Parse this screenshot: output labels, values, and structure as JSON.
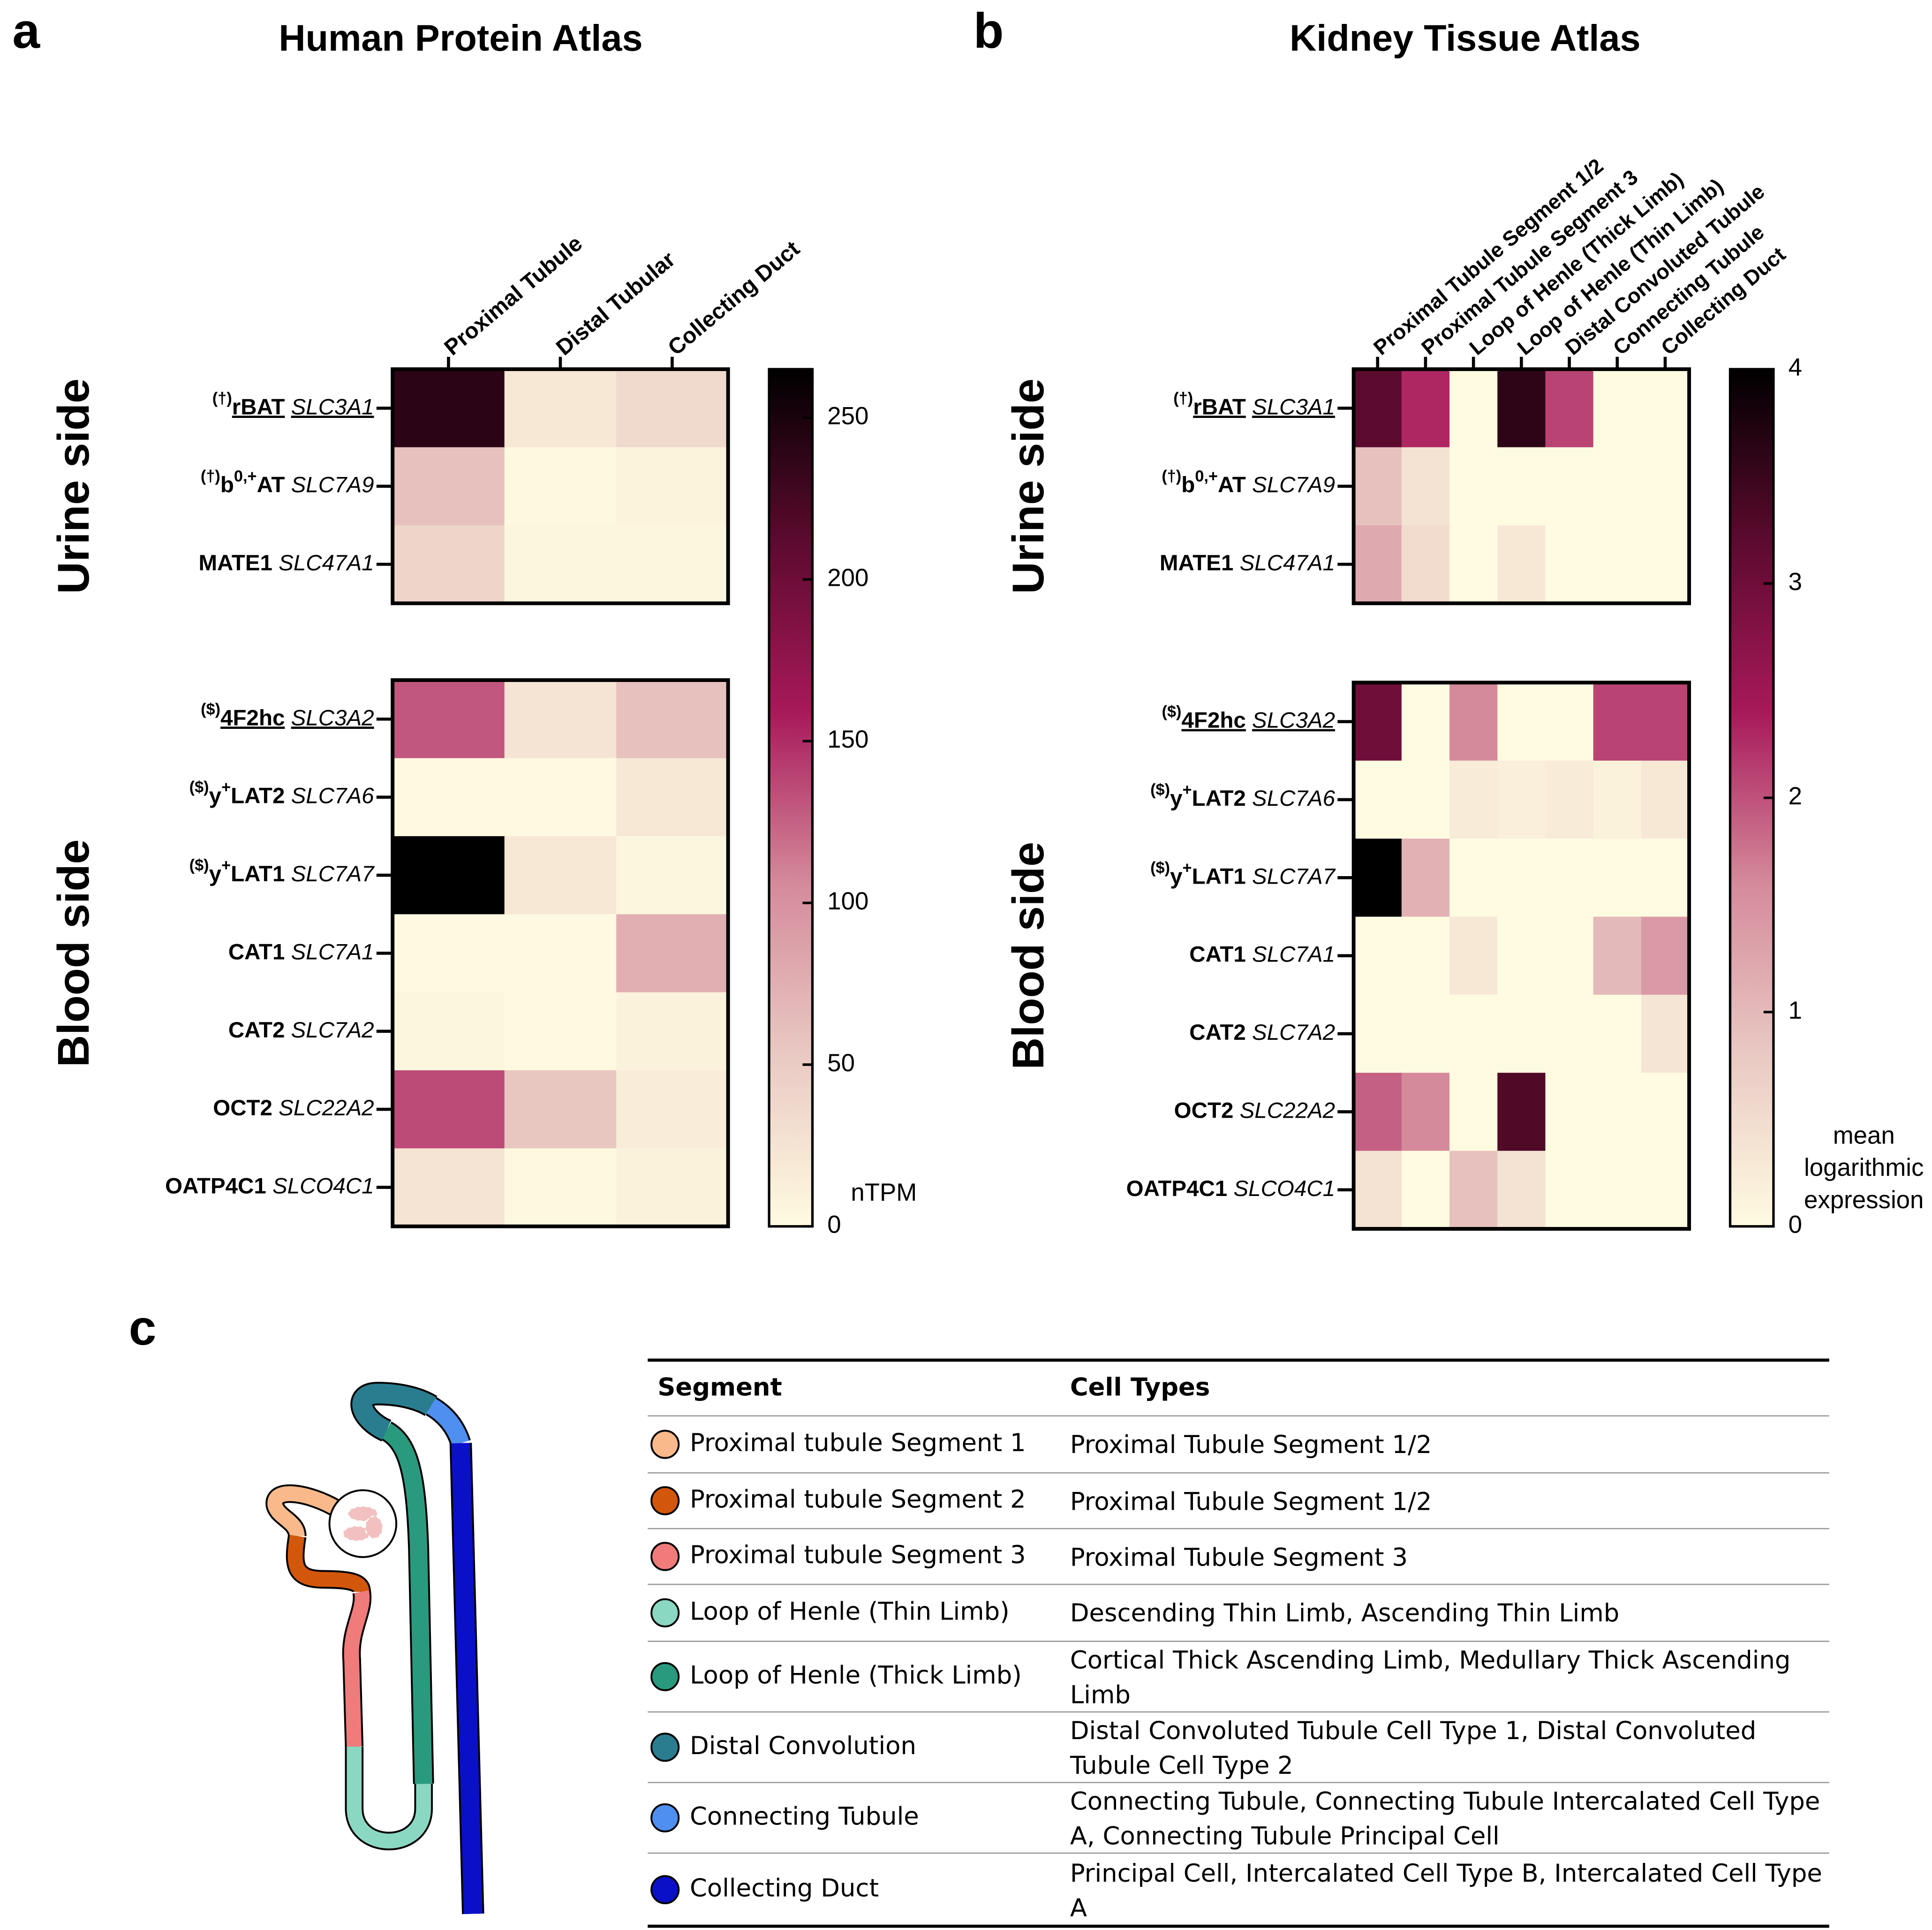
{
  "panels": [
    "a",
    "b",
    "c"
  ],
  "chart_data": [
    {
      "type": "heatmap",
      "title": "Human Protein Atlas",
      "categories": [
        "Proximal Tubule",
        "Distal Tubular",
        "Collecting Duct"
      ],
      "groups": [
        {
          "label": "Urine side",
          "rows": [
            {
              "note": "(†)",
              "protein": [
                "rBAT"
              ],
              "gene": "SLC3A1",
              "underline": true
            },
            {
              "note": "(†)",
              "protein": [
                "b",
                "0,+",
                "AT"
              ],
              "gene": "SLC7A9"
            },
            {
              "protein": [
                "MATE1"
              ],
              "gene": "SLC47A1"
            }
          ],
          "values": [
            [
              240,
              20,
              35
            ],
            [
              60,
              3,
              8
            ],
            [
              40,
              5,
              5
            ]
          ]
        },
        {
          "label": "Blood side",
          "rows": [
            {
              "note": "($)",
              "protein": [
                "4F2hc"
              ],
              "gene": "SLC3A2",
              "underline": true
            },
            {
              "note": "($)",
              "protein": [
                "y",
                "+",
                "LAT2"
              ],
              "gene": "SLC7A6"
            },
            {
              "note": "($)",
              "protein": [
                "y",
                "+",
                "LAT1"
              ],
              "gene": "SLC7A7"
            },
            {
              "protein": [
                "CAT1"
              ],
              "gene": "SLC7A1"
            },
            {
              "protein": [
                "CAT2"
              ],
              "gene": "SLC7A2"
            },
            {
              "protein": [
                "OCT2"
              ],
              "gene": "SLC22A2"
            },
            {
              "protein": [
                "OATP4C1"
              ],
              "gene": "SLCO4C1"
            }
          ],
          "values": [
            [
              130,
              25,
              60
            ],
            [
              2,
              2,
              20
            ],
            [
              265,
              20,
              5
            ],
            [
              2,
              2,
              75
            ],
            [
              5,
              2,
              10
            ],
            [
              135,
              55,
              15
            ],
            [
              25,
              3,
              10
            ]
          ]
        }
      ],
      "zlim": [
        0,
        265
      ],
      "zticks": [
        0,
        50,
        100,
        150,
        200,
        250
      ],
      "colorbar_label": [
        "nTPM"
      ],
      "colors": [
        "#fffbe1",
        "#e9c9c3",
        "#d58a9b",
        "#a8195a",
        "#5c0a2e",
        "#000000"
      ]
    },
    {
      "type": "heatmap",
      "title": "Kidney Tissue Atlas",
      "categories": [
        "Proximal Tubule Segment 1/2",
        "Proximal Tubule Segment 3",
        "Loop of Henle (Thick Limb)",
        "Loop of Henle (Thin Limb)",
        "Distal Convoluted Tubule",
        "Connecting Tubule",
        "Collecting Duct"
      ],
      "groups": [
        {
          "label": "Urine side",
          "rows": [
            {
              "note": "(†)",
              "protein": [
                "rBAT"
              ],
              "gene": "SLC3A1",
              "underline": true
            },
            {
              "note": "(†)",
              "protein": [
                "b",
                "0,+",
                "AT"
              ],
              "gene": "SLC7A9"
            },
            {
              "protein": [
                "MATE1"
              ],
              "gene": "SLC47A1"
            }
          ],
          "values": [
            [
              3.2,
              2.3,
              0,
              3.6,
              2.1,
              0,
              0
            ],
            [
              0.9,
              0.4,
              0,
              0,
              0,
              0,
              0
            ],
            [
              1.2,
              0.5,
              0,
              0.3,
              0,
              0,
              0
            ]
          ]
        },
        {
          "label": "Blood side",
          "rows": [
            {
              "note": "($)",
              "protein": [
                "4F2hc"
              ],
              "gene": "SLC3A2",
              "underline": true
            },
            {
              "note": "($)",
              "protein": [
                "y",
                "+",
                "LAT2"
              ],
              "gene": "SLC7A6"
            },
            {
              "note": "($)",
              "protein": [
                "y",
                "+",
                "LAT1"
              ],
              "gene": "SLC7A7"
            },
            {
              "protein": [
                "CAT1"
              ],
              "gene": "SLC7A1"
            },
            {
              "protein": [
                "CAT2"
              ],
              "gene": "SLC7A2"
            },
            {
              "protein": [
                "OCT2"
              ],
              "gene": "SLC22A2"
            },
            {
              "protein": [
                "OATP4C1"
              ],
              "gene": "SLCO4C1"
            }
          ],
          "values": [
            [
              3.0,
              0,
              1.6,
              0,
              0,
              2.1,
              2.1
            ],
            [
              0,
              0,
              0.25,
              0.2,
              0.25,
              0.15,
              0.3
            ],
            [
              4.0,
              1.1,
              0,
              0,
              0,
              0,
              0
            ],
            [
              0,
              0,
              0.3,
              0,
              0,
              1.0,
              1.4
            ],
            [
              0,
              0,
              0,
              0,
              0,
              0,
              0.35
            ],
            [
              1.9,
              1.6,
              0,
              3.3,
              0,
              0,
              0
            ],
            [
              0.4,
              0,
              0.9,
              0.4,
              0,
              0,
              0
            ]
          ]
        }
      ],
      "zlim": [
        0,
        4
      ],
      "zticks": [
        0,
        1,
        2,
        3,
        4
      ],
      "colorbar_label": [
        "mean",
        "logarithmic",
        "expression"
      ],
      "colors": [
        "#fffbe1",
        "#e9c9c3",
        "#d58a9b",
        "#a8195a",
        "#5c0a2e",
        "#000000"
      ]
    }
  ],
  "table": {
    "header": [
      "Segment",
      "Cell Types"
    ],
    "rows": [
      {
        "color": "#f9b98a",
        "segment": "Proximal tubule Segment 1",
        "cell_types": "Proximal Tubule Segment 1/2"
      },
      {
        "color": "#d2570a",
        "segment": "Proximal tubule Segment 2",
        "cell_types": "Proximal Tubule Segment 1/2"
      },
      {
        "color": "#f07b7b",
        "segment": "Proximal tubule Segment 3",
        "cell_types": "Proximal Tubule Segment 3"
      },
      {
        "color": "#8ad8c2",
        "segment": "Loop of Henle (Thin Limb)",
        "cell_types": "Descending Thin Limb, Ascending Thin Limb"
      },
      {
        "color": "#2a9a7e",
        "segment": "Loop of Henle (Thick Limb)",
        "cell_types": "Cortical Thick Ascending Limb, Medullary Thick Ascending Limb"
      },
      {
        "color": "#2a7d8e",
        "segment": "Distal Convolution",
        "cell_types": "Distal Convoluted Tubule Cell Type 1, Distal Convoluted Tubule Cell Type 2"
      },
      {
        "color": "#4f8ff0",
        "segment": "Connecting Tubule",
        "cell_types": "Connecting Tubule, Connecting Tubule Intercalated Cell Type A, Connecting Tubule Principal Cell"
      },
      {
        "color": "#0a10c8",
        "segment": "Collecting Duct",
        "cell_types": "Principal Cell, Intercalated Cell Type B, Intercalated Cell Type A"
      }
    ]
  }
}
